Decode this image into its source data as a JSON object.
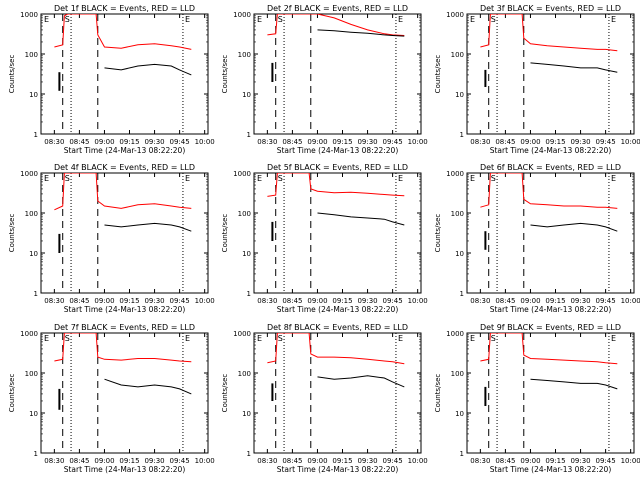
{
  "chart_data": {
    "type": "line",
    "layout": "3x3 grid of panels",
    "yscale": "log",
    "ylim": [
      1,
      1000
    ],
    "ytick_labels": [
      "1",
      "10",
      "100",
      "1000"
    ],
    "xtick_labels": [
      "08:30",
      "08:45",
      "09:00",
      "09:15",
      "09:30",
      "09:45",
      "10:00"
    ],
    "xlabel": "Start Time (24-Mar-13 08:22:20)",
    "ylabel": "Counts/sec",
    "legend_note": "BLACK = Events, RED = LLD",
    "series_colors": {
      "events": "#000000",
      "lld": "#ff0000"
    },
    "vlines": {
      "dashed": [
        "08:35",
        "08:56"
      ],
      "dotted": [
        "08:40",
        "09:47"
      ]
    },
    "marker_labels": [
      "E",
      "S",
      "E"
    ],
    "panels": [
      {
        "title": "Det 1f BLACK = Events, RED = LLD",
        "lld": {
          "x": [
            "08:30",
            "08:35",
            "08:36",
            "08:38",
            "08:40",
            "08:55",
            "08:56",
            "09:00",
            "09:10",
            "09:20",
            "09:30",
            "09:40",
            "09:45",
            "09:52"
          ],
          "y": [
            150,
            170,
            900,
            1000,
            1000,
            1000,
            300,
            150,
            140,
            170,
            180,
            160,
            150,
            130
          ]
        },
        "events": {
          "x": [
            "09:00",
            "09:10",
            "09:20",
            "09:30",
            "09:40",
            "09:45",
            "09:52"
          ],
          "y": [
            45,
            40,
            50,
            55,
            50,
            40,
            30
          ]
        },
        "events_early": {
          "x": [
            "08:33",
            "08:33"
          ],
          "y": [
            12,
            35
          ]
        }
      },
      {
        "title": "Det 2f BLACK = Events, RED = LLD",
        "lld": {
          "x": [
            "08:30",
            "08:35",
            "08:36",
            "08:38",
            "08:40",
            "08:55",
            "08:56",
            "09:00",
            "09:10",
            "09:20",
            "09:30",
            "09:40",
            "09:45",
            "09:52"
          ],
          "y": [
            300,
            320,
            1000,
            1000,
            1000,
            1000,
            1100,
            1000,
            800,
            550,
            400,
            320,
            300,
            290
          ]
        },
        "events": {
          "x": [
            "09:00",
            "09:10",
            "09:20",
            "09:30",
            "09:40",
            "09:45",
            "09:52"
          ],
          "y": [
            400,
            380,
            350,
            330,
            300,
            290,
            280
          ]
        },
        "events_early": {
          "x": [
            "08:33",
            "08:33"
          ],
          "y": [
            20,
            60
          ]
        }
      },
      {
        "title": "Det 3f BLACK = Events, RED = LLD",
        "lld": {
          "x": [
            "08:30",
            "08:35",
            "08:36",
            "08:38",
            "08:40",
            "08:55",
            "08:56",
            "09:00",
            "09:10",
            "09:20",
            "09:30",
            "09:40",
            "09:45",
            "09:52"
          ],
          "y": [
            150,
            170,
            1000,
            1000,
            1000,
            1000,
            250,
            180,
            160,
            150,
            140,
            130,
            130,
            120
          ]
        },
        "events": {
          "x": [
            "09:00",
            "09:10",
            "09:20",
            "09:30",
            "09:40",
            "09:45",
            "09:52"
          ],
          "y": [
            60,
            55,
            50,
            45,
            45,
            40,
            35
          ]
        },
        "events_early": {
          "x": [
            "08:33",
            "08:33"
          ],
          "y": [
            15,
            40
          ]
        }
      },
      {
        "title": "Det 4f BLACK = Events, RED = LLD",
        "lld": {
          "x": [
            "08:30",
            "08:35",
            "08:36",
            "08:38",
            "08:40",
            "08:55",
            "08:56",
            "09:00",
            "09:10",
            "09:20",
            "09:30",
            "09:40",
            "09:45",
            "09:52"
          ],
          "y": [
            120,
            150,
            1000,
            1000,
            1000,
            1000,
            200,
            150,
            130,
            160,
            170,
            150,
            140,
            130
          ]
        },
        "events": {
          "x": [
            "09:00",
            "09:10",
            "09:20",
            "09:30",
            "09:40",
            "09:45",
            "09:52"
          ],
          "y": [
            50,
            45,
            50,
            55,
            50,
            45,
            35
          ]
        },
        "events_early": {
          "x": [
            "08:33",
            "08:33"
          ],
          "y": [
            10,
            30
          ]
        }
      },
      {
        "title": "Det 5f BLACK = Events, RED = LLD",
        "lld": {
          "x": [
            "08:30",
            "08:35",
            "08:36",
            "08:38",
            "08:40",
            "08:55",
            "08:56",
            "09:00",
            "09:10",
            "09:20",
            "09:30",
            "09:40",
            "09:45",
            "09:52"
          ],
          "y": [
            260,
            280,
            1000,
            1000,
            1000,
            1000,
            400,
            350,
            320,
            330,
            310,
            290,
            280,
            270
          ]
        },
        "events": {
          "x": [
            "09:00",
            "09:10",
            "09:20",
            "09:30",
            "09:40",
            "09:45",
            "09:52"
          ],
          "y": [
            100,
            90,
            80,
            75,
            70,
            60,
            50
          ]
        },
        "events_early": {
          "x": [
            "08:33",
            "08:33"
          ],
          "y": [
            20,
            60
          ]
        }
      },
      {
        "title": "Det 6f BLACK = Events, RED = LLD",
        "lld": {
          "x": [
            "08:30",
            "08:35",
            "08:36",
            "08:38",
            "08:40",
            "08:55",
            "08:56",
            "09:00",
            "09:10",
            "09:20",
            "09:30",
            "09:40",
            "09:45",
            "09:52"
          ],
          "y": [
            140,
            160,
            1000,
            1000,
            1000,
            1000,
            220,
            170,
            160,
            150,
            150,
            140,
            140,
            130
          ]
        },
        "events": {
          "x": [
            "09:00",
            "09:10",
            "09:20",
            "09:30",
            "09:40",
            "09:45",
            "09:52"
          ],
          "y": [
            50,
            45,
            50,
            55,
            50,
            45,
            35
          ]
        },
        "events_early": {
          "x": [
            "08:33",
            "08:33"
          ],
          "y": [
            12,
            35
          ]
        }
      },
      {
        "title": "Det 7f BLACK = Events, RED = LLD",
        "lld": {
          "x": [
            "08:30",
            "08:35",
            "08:36",
            "08:38",
            "08:40",
            "08:55",
            "08:56",
            "09:00",
            "09:10",
            "09:20",
            "09:30",
            "09:40",
            "09:45",
            "09:52"
          ],
          "y": [
            200,
            220,
            1000,
            1000,
            1000,
            1000,
            250,
            220,
            210,
            230,
            230,
            210,
            200,
            190
          ]
        },
        "events": {
          "x": [
            "09:00",
            "09:10",
            "09:20",
            "09:30",
            "09:40",
            "09:45",
            "09:52"
          ],
          "y": [
            70,
            50,
            45,
            50,
            45,
            40,
            30
          ]
        },
        "events_early": {
          "x": [
            "08:33",
            "08:33"
          ],
          "y": [
            12,
            40
          ]
        }
      },
      {
        "title": "Det 8f BLACK = Events, RED = LLD",
        "lld": {
          "x": [
            "08:30",
            "08:35",
            "08:36",
            "08:38",
            "08:40",
            "08:55",
            "08:56",
            "09:00",
            "09:10",
            "09:20",
            "09:30",
            "09:40",
            "09:45",
            "09:52"
          ],
          "y": [
            180,
            200,
            1000,
            1000,
            1000,
            1000,
            300,
            250,
            250,
            240,
            220,
            200,
            190,
            170
          ]
        },
        "events": {
          "x": [
            "09:00",
            "09:10",
            "09:20",
            "09:30",
            "09:40",
            "09:45",
            "09:52"
          ],
          "y": [
            80,
            70,
            75,
            85,
            75,
            60,
            45
          ]
        },
        "events_early": {
          "x": [
            "08:33",
            "08:33"
          ],
          "y": [
            20,
            55
          ]
        }
      },
      {
        "title": "Det 9f BLACK = Events, RED = LLD",
        "lld": {
          "x": [
            "08:30",
            "08:35",
            "08:36",
            "08:38",
            "08:40",
            "08:55",
            "08:56",
            "09:00",
            "09:10",
            "09:20",
            "09:30",
            "09:40",
            "09:45",
            "09:52"
          ],
          "y": [
            200,
            220,
            1000,
            1000,
            1000,
            1000,
            280,
            230,
            220,
            210,
            200,
            190,
            180,
            170
          ]
        },
        "events": {
          "x": [
            "09:00",
            "09:10",
            "09:20",
            "09:30",
            "09:40",
            "09:45",
            "09:52"
          ],
          "y": [
            70,
            65,
            60,
            55,
            55,
            50,
            40
          ]
        },
        "events_early": {
          "x": [
            "08:33",
            "08:33"
          ],
          "y": [
            15,
            45
          ]
        }
      }
    ]
  }
}
